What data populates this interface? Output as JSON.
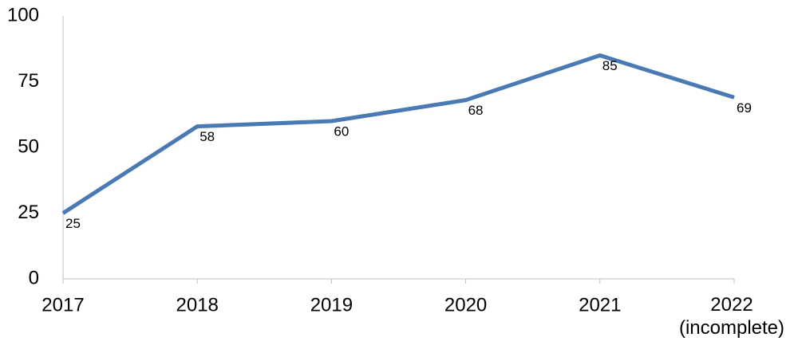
{
  "chart_data": {
    "type": "line",
    "categories": [
      "2017",
      "2018",
      "2019",
      "2020",
      "2021",
      "2022\n(incomplete)"
    ],
    "series": [
      {
        "color": "#4a7ab5",
        "values": [
          25,
          58,
          60,
          68,
          85,
          69
        ]
      }
    ],
    "ylim": [
      0,
      100
    ],
    "yticks": [
      0,
      25,
      50,
      75,
      100
    ],
    "grid": false
  }
}
